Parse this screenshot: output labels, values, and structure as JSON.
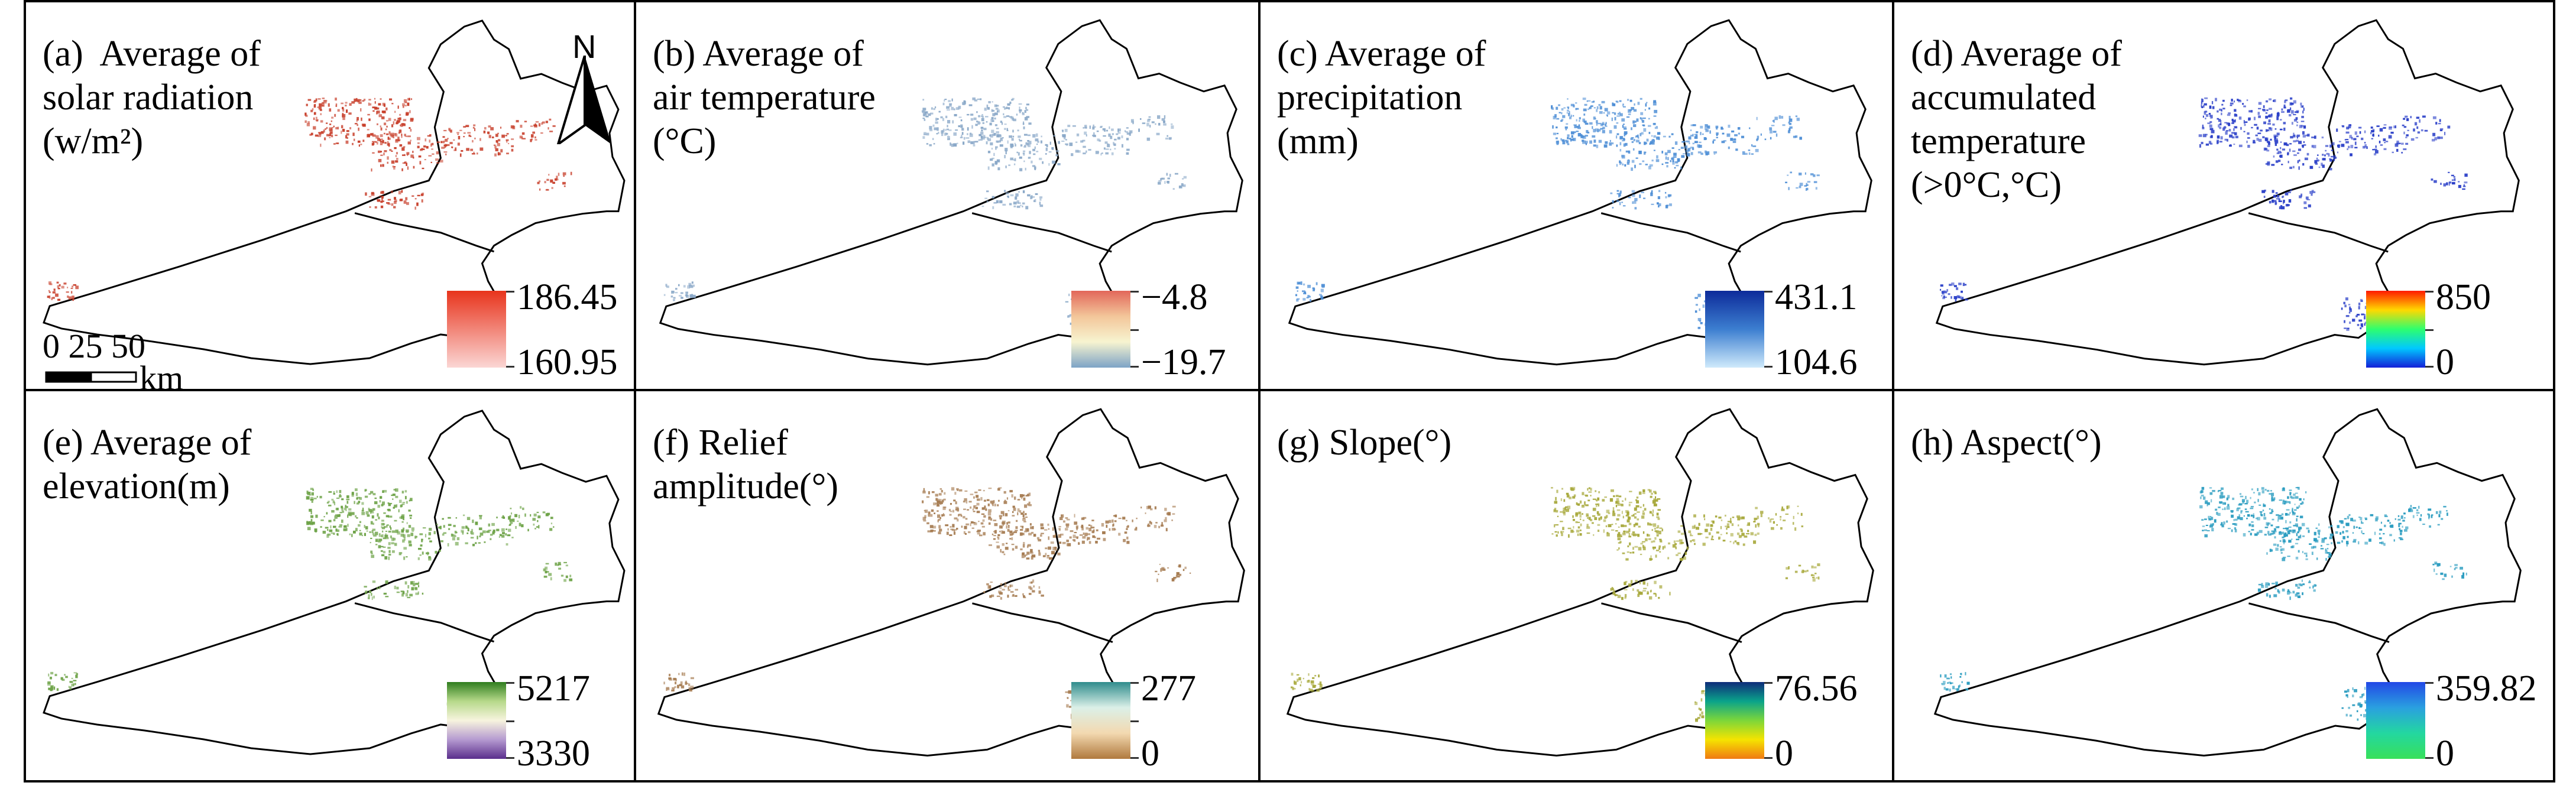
{
  "panels": [
    {
      "id": "a",
      "title_lines": [
        "(a)  Average of",
        "solar radiation",
        "(w/m²)"
      ],
      "legend": {
        "max": "186.45",
        "min": "160.95",
        "colors": [
          "#e8341c",
          "#fbd6d4"
        ],
        "mid_tick": false
      },
      "scatter_color": "#c8402c"
    },
    {
      "id": "b",
      "title_lines": [
        "(b) Average of",
        "air temperature",
        "(°C)"
      ],
      "legend": {
        "max": "−4.8",
        "min": "−19.7",
        "colors": [
          "#e2675a",
          "#f3c69a",
          "#f7f4d0",
          "#7da3c6"
        ],
        "mid_tick": true
      },
      "scatter_color": "#8aa8c8"
    },
    {
      "id": "c",
      "title_lines": [
        "(c) Average of",
        "precipitation",
        "(mm)"
      ],
      "legend": {
        "max": "431.1",
        "min": "104.6",
        "colors": [
          "#0d2b9a",
          "#3c7ed0",
          "#cfeafb"
        ],
        "mid_tick": false
      },
      "scatter_color": "#4f8fd6"
    },
    {
      "id": "d",
      "title_lines": [
        "(d) Average of",
        "accumulated",
        "temperature",
        "(>0°C,°C)"
      ],
      "legend": {
        "max": "850",
        "min": "0",
        "colors": [
          "#ff1a00",
          "#ffd800",
          "#2dff6e",
          "#00c8ff",
          "#1420d8"
        ],
        "mid_tick": true
      },
      "scatter_color": "#2a3fc8"
    },
    {
      "id": "e",
      "title_lines": [
        "(e) Average of",
        "elevation(m)"
      ],
      "legend": {
        "max": "5217",
        "min": "3330",
        "colors": [
          "#2f7d1e",
          "#b6d98a",
          "#f7f4de",
          "#b59ad0",
          "#5a2e8c"
        ],
        "mid_tick": true
      },
      "scatter_color": "#6ea348"
    },
    {
      "id": "f",
      "title_lines": [
        "(f) Relief",
        "amplitude(°)"
      ],
      "legend": {
        "max": "277",
        "min": "0",
        "colors": [
          "#2f8c8c",
          "#dbf0e8",
          "#f3d9b0",
          "#b0793e"
        ],
        "mid_tick": true
      },
      "scatter_color": "#a67c52"
    },
    {
      "id": "g",
      "title_lines": [
        "(g) Slope(°)"
      ],
      "legend": {
        "max": "76.56",
        "min": "0",
        "colors": [
          "#0f2c7a",
          "#0aa38a",
          "#7cd63a",
          "#f5e400",
          "#f07a12"
        ],
        "mid_tick": false
      },
      "scatter_color": "#a7a83a"
    },
    {
      "id": "h",
      "title_lines": [
        "(h) Aspect(°)"
      ],
      "legend": {
        "max": "359.82",
        "min": "0",
        "colors": [
          "#2248e6",
          "#2aa0e0",
          "#23d7a0",
          "#38e05a"
        ],
        "mid_tick": false
      },
      "scatter_color": "#2a9cc0"
    }
  ],
  "north_arrow": {
    "label": "N"
  },
  "scale_bar": {
    "labels": "0  25 50",
    "unit": "km"
  }
}
